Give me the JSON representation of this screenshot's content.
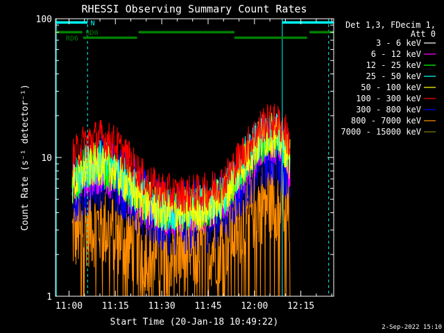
{
  "chart_data": {
    "type": "line",
    "title": "RHESSI Observing Summary Count Rates",
    "xlabel": "Start Time (20-Jan-18 10:49:22)",
    "ylabel": "Count Rate (s⁻¹ detector⁻¹)",
    "yscale": "log",
    "ylim": [
      1,
      100
    ],
    "xlim_minutes": [
      -4.37,
      85.63
    ],
    "x_ticks": [
      {
        "label": "11:00",
        "min": 0
      },
      {
        "label": "11:15",
        "min": 15
      },
      {
        "label": "11:30",
        "min": 30
      },
      {
        "label": "11:45",
        "min": 45
      },
      {
        "label": "12:00",
        "min": 60
      },
      {
        "label": "12:15",
        "min": 75
      }
    ],
    "y_ticks": [
      {
        "label": "1",
        "value": 1
      },
      {
        "label": "10",
        "value": 10
      },
      {
        "label": "100",
        "value": 100
      }
    ],
    "legend": {
      "placement": "right",
      "header": [
        "Det 1,3, FDecim 1,",
        "Att 0"
      ],
      "entries": [
        {
          "label": "3 - 6 keV",
          "color": "#ffffff"
        },
        {
          "label": "6 - 12 keV",
          "color": "#ff00ff"
        },
        {
          "label": "12 - 25 keV",
          "color": "#00ff00"
        },
        {
          "label": "25 - 50 keV",
          "color": "#00ffff"
        },
        {
          "label": "50 - 100 keV",
          "color": "#ffff00"
        },
        {
          "label": "100 - 300 keV",
          "color": "#ff0000"
        },
        {
          "label": "300 - 800 keV",
          "color": "#0000ff"
        },
        {
          "label": "800 - 7000 keV",
          "color": "#ff8c00"
        },
        {
          "label": "7000 - 15000 keV",
          "color": "#808000"
        }
      ]
    },
    "data_span_minutes": [
      1.0,
      71.5
    ],
    "series": [
      {
        "name": "100 - 300 keV",
        "color": "#ff0000",
        "base_points": [
          [
            1.0,
            9.5
          ],
          [
            5,
            12.5
          ],
          [
            10,
            13.5
          ],
          [
            15,
            12.2
          ],
          [
            20,
            9.0
          ],
          [
            25,
            6.4
          ],
          [
            30,
            5.6
          ],
          [
            35,
            5.2
          ],
          [
            40,
            5.3
          ],
          [
            45,
            5.5
          ],
          [
            50,
            6.5
          ],
          [
            55,
            9.5
          ],
          [
            60,
            14
          ],
          [
            63,
            17
          ],
          [
            66,
            17.5
          ],
          [
            68,
            17
          ],
          [
            70,
            15
          ],
          [
            71.5,
            12
          ]
        ],
        "spread": 1.5
      },
      {
        "name": "300 - 800 keV",
        "color": "#0000ff",
        "base_points": [
          [
            1.0,
            5.0
          ],
          [
            5,
            6.5
          ],
          [
            10,
            7.5
          ],
          [
            15,
            7.0
          ],
          [
            20,
            5.5
          ],
          [
            25,
            4.0
          ],
          [
            30,
            3.5
          ],
          [
            35,
            3.4
          ],
          [
            40,
            3.5
          ],
          [
            45,
            3.6
          ],
          [
            50,
            4.2
          ],
          [
            55,
            6.0
          ],
          [
            60,
            8.5
          ],
          [
            63,
            10
          ],
          [
            66,
            10.5
          ],
          [
            68,
            10
          ],
          [
            70,
            9
          ],
          [
            71.5,
            7
          ]
        ],
        "spread": 2.2
      },
      {
        "name": "12 - 25 keV",
        "color": "#00ff00",
        "base_points": [
          [
            1.0,
            6.0
          ],
          [
            5,
            8.0
          ],
          [
            10,
            8.5
          ],
          [
            15,
            7.5
          ],
          [
            20,
            5.5
          ],
          [
            25,
            4.5
          ],
          [
            30,
            4.0
          ],
          [
            35,
            4.0
          ],
          [
            40,
            4.0
          ],
          [
            45,
            4.2
          ],
          [
            50,
            5.0
          ],
          [
            55,
            7.5
          ],
          [
            60,
            11
          ],
          [
            63,
            13
          ],
          [
            66,
            13.5
          ],
          [
            68,
            13
          ],
          [
            70,
            11
          ],
          [
            71.5,
            9
          ]
        ],
        "spread": 1.6
      },
      {
        "name": "6 - 12 keV",
        "color": "#ff00ff",
        "base_points": [
          [
            1.0,
            5.5
          ],
          [
            5,
            7.0
          ],
          [
            10,
            7.5
          ],
          [
            15,
            6.8
          ],
          [
            20,
            5.0
          ],
          [
            25,
            4.2
          ],
          [
            30,
            3.8
          ],
          [
            35,
            3.7
          ],
          [
            40,
            3.8
          ],
          [
            45,
            4.0
          ],
          [
            50,
            4.8
          ],
          [
            55,
            6.8
          ],
          [
            60,
            10
          ],
          [
            63,
            12
          ],
          [
            66,
            12.5
          ],
          [
            68,
            12
          ],
          [
            70,
            10
          ],
          [
            71.5,
            8
          ]
        ],
        "spread": 1.6
      },
      {
        "name": "25 - 50 keV",
        "color": "#00ffff",
        "base_points": [
          [
            1.0,
            6.5
          ],
          [
            5,
            8.5
          ],
          [
            10,
            9.0
          ],
          [
            15,
            8.0
          ],
          [
            20,
            6.0
          ],
          [
            25,
            4.8
          ],
          [
            30,
            4.2
          ],
          [
            35,
            4.1
          ],
          [
            40,
            4.2
          ],
          [
            45,
            4.4
          ],
          [
            50,
            5.2
          ],
          [
            55,
            8.0
          ],
          [
            60,
            12
          ],
          [
            63,
            14
          ],
          [
            66,
            14.5
          ],
          [
            68,
            14
          ],
          [
            70,
            12
          ],
          [
            71.5,
            10
          ]
        ],
        "spread": 1.6
      },
      {
        "name": "50 - 100 keV",
        "color": "#ffff00",
        "base_points": [
          [
            1.0,
            6.0
          ],
          [
            5,
            8.0
          ],
          [
            10,
            8.8
          ],
          [
            15,
            7.8
          ],
          [
            20,
            5.8
          ],
          [
            25,
            4.6
          ],
          [
            30,
            4.0
          ],
          [
            35,
            3.9
          ],
          [
            40,
            4.0
          ],
          [
            45,
            4.2
          ],
          [
            50,
            5.0
          ],
          [
            55,
            7.8
          ],
          [
            60,
            11.5
          ],
          [
            63,
            13.5
          ],
          [
            66,
            14
          ],
          [
            68,
            13.5
          ],
          [
            70,
            11.5
          ],
          [
            71.5,
            9.5
          ]
        ],
        "spread": 1.6
      },
      {
        "name": "800 - 7000 keV",
        "color": "#ff8c00",
        "base_points": [
          [
            1.0,
            2.6
          ],
          [
            5,
            3.0
          ],
          [
            10,
            3.0
          ],
          [
            15,
            2.7
          ],
          [
            20,
            2.3
          ],
          [
            25,
            2.0
          ],
          [
            30,
            2.0
          ],
          [
            35,
            2.0
          ],
          [
            40,
            2.0
          ],
          [
            45,
            2.1
          ],
          [
            50,
            2.3
          ],
          [
            55,
            3.0
          ],
          [
            60,
            4.0
          ],
          [
            63,
            4.5
          ],
          [
            66,
            4.8
          ],
          [
            68,
            4.6
          ],
          [
            70,
            4.2
          ],
          [
            71.5,
            3.6
          ]
        ],
        "spread": 2.4
      }
    ],
    "annotations": {
      "top_bars": [
        {
          "label": "N",
          "color": "#00ffff",
          "y_value": 94,
          "segments": [
            [
              -4.37,
              6.0
            ],
            [
              69.0,
              85.63
            ]
          ],
          "label_min": 7.0
        },
        {
          "label": "RD0",
          "color": "#008000",
          "y_value": 80,
          "segments": [
            [
              -4.37,
              4.3
            ],
            [
              22.5,
              53.5
            ],
            [
              77.8,
              85.63
            ]
          ],
          "label_min": 5.4
        },
        {
          "label": "RD6",
          "color": "#008000",
          "y_value": 73,
          "segments": [
            [
              4.6,
              22.0
            ],
            [
              53.5,
              77.0
            ]
          ],
          "label_min": -1.0
        }
      ],
      "vlines": [
        {
          "min": -4.1,
          "color": "#00ffff",
          "style": "solid"
        },
        {
          "min": 6.0,
          "color": "#00ffff",
          "style": "dashed"
        },
        {
          "min": 69.0,
          "color": "#00ffff",
          "style": "solid"
        },
        {
          "min": 84.0,
          "color": "#00ffff",
          "style": "dashed"
        }
      ]
    },
    "timestamp": "2-Sep-2022 15:10"
  },
  "colors": {
    "background": "#000000",
    "foreground": "#ffffff"
  }
}
